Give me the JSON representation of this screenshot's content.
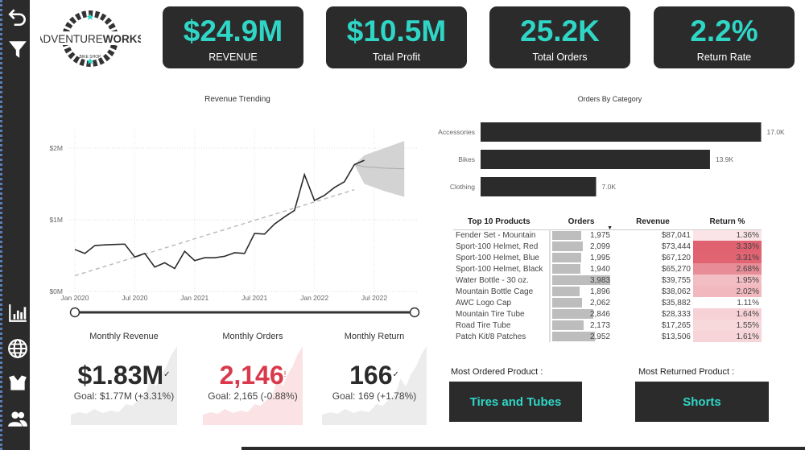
{
  "sidebar": {
    "icons": [
      "back-arrow-icon",
      "filter-icon",
      "bar-chart-icon",
      "globe-icon",
      "box-icon",
      "users-icon"
    ]
  },
  "logo": {
    "text": "ADVENTUREWORKS",
    "subtext": "BIKE SHOP"
  },
  "kpis": [
    {
      "value": "$24.9M",
      "label": "REVENUE"
    },
    {
      "value": "$10.5M",
      "label": "Total Profit"
    },
    {
      "value": "25.2K",
      "label": "Total Orders"
    },
    {
      "value": "2.2%",
      "label": "Return Rate"
    }
  ],
  "colors": {
    "dark": "#2b2b2b",
    "accent": "#2fd6c6",
    "negative": "#d9394b",
    "return_high": "#e06070"
  },
  "chart_data": [
    {
      "type": "line",
      "title": "Revenue Trending",
      "x_ticks": [
        "Jan 2020",
        "Jul 2020",
        "Jan 2021",
        "Jul 2021",
        "Jan 2022",
        "Jul 2022"
      ],
      "y_ticks": [
        "$0M",
        "$1M",
        "$2M"
      ],
      "ylim": [
        0,
        2.2
      ],
      "grid": true,
      "x": [
        "2020-01",
        "2020-02",
        "2020-03",
        "2020-04",
        "2020-05",
        "2020-06",
        "2020-07",
        "2020-08",
        "2020-09",
        "2020-10",
        "2020-11",
        "2020-12",
        "2021-01",
        "2021-02",
        "2021-03",
        "2021-04",
        "2021-05",
        "2021-06",
        "2021-07",
        "2021-08",
        "2021-09",
        "2021-10",
        "2021-11",
        "2021-12",
        "2022-01",
        "2022-02",
        "2022-03",
        "2022-04",
        "2022-05",
        "2022-06"
      ],
      "values": [
        0.585,
        0.53,
        0.64,
        0.65,
        0.655,
        0.66,
        0.48,
        0.53,
        0.34,
        0.4,
        0.32,
        0.56,
        0.43,
        0.47,
        0.47,
        0.49,
        0.54,
        0.53,
        0.81,
        0.8,
        0.94,
        1.04,
        1.13,
        1.63,
        1.27,
        1.34,
        1.45,
        1.53,
        1.77,
        1.83
      ],
      "trend": {
        "start": [
          "2020-01",
          0.22
        ],
        "end": [
          "2022-05",
          1.42
        ]
      },
      "forecast": {
        "x": [
          "2022-05",
          "2022-06",
          "2022-08",
          "2022-10"
        ],
        "mid": [
          1.77,
          1.74,
          1.72,
          1.71
        ],
        "upper": [
          1.77,
          1.9,
          2.0,
          2.1
        ],
        "lower": [
          1.77,
          1.5,
          1.4,
          1.32
        ]
      }
    },
    {
      "type": "bar",
      "title": "Orders By Category",
      "categories": [
        "Accessories",
        "Bikes",
        "Clothing"
      ],
      "values": [
        17.0,
        13.9,
        7.0
      ],
      "labels": [
        "17.0K",
        "13.9K",
        "7.0K"
      ]
    }
  ],
  "top_products": {
    "headers": [
      "Top 10 Products",
      "Orders",
      "Revenue",
      "Return %"
    ],
    "rows": [
      {
        "name": "Fender Set - Mountain",
        "orders": "1,975",
        "orders_n": 1975,
        "revenue": "$87,041",
        "ret": "1.36%",
        "ret_n": 1.36
      },
      {
        "name": "Sport-100 Helmet, Red",
        "orders": "2,099",
        "orders_n": 2099,
        "revenue": "$73,444",
        "ret": "3.33%",
        "ret_n": 3.33
      },
      {
        "name": "Sport-100 Helmet, Blue",
        "orders": "1,995",
        "orders_n": 1995,
        "revenue": "$67,120",
        "ret": "3.31%",
        "ret_n": 3.31
      },
      {
        "name": "Sport-100 Helmet, Black",
        "orders": "1,940",
        "orders_n": 1940,
        "revenue": "$65,270",
        "ret": "2.68%",
        "ret_n": 2.68
      },
      {
        "name": "Water Bottle - 30 oz.",
        "orders": "3,983",
        "orders_n": 3983,
        "revenue": "$39,755",
        "ret": "1.95%",
        "ret_n": 1.95
      },
      {
        "name": "Mountain Bottle Cage",
        "orders": "1,896",
        "orders_n": 1896,
        "revenue": "$38,062",
        "ret": "2.02%",
        "ret_n": 2.02
      },
      {
        "name": "AWC Logo Cap",
        "orders": "2,062",
        "orders_n": 2062,
        "revenue": "$35,882",
        "ret": "1.11%",
        "ret_n": 1.11
      },
      {
        "name": "Mountain Tire Tube",
        "orders": "2,846",
        "orders_n": 2846,
        "revenue": "$28,333",
        "ret": "1.64%",
        "ret_n": 1.64
      },
      {
        "name": "Road Tire Tube",
        "orders": "2,173",
        "orders_n": 2173,
        "revenue": "$17,265",
        "ret": "1.55%",
        "ret_n": 1.55
      },
      {
        "name": "Patch Kit/8 Patches",
        "orders": "2,952",
        "orders_n": 2952,
        "revenue": "$13,506",
        "ret": "1.61%",
        "ret_n": 1.61
      }
    ]
  },
  "monthly": [
    {
      "title": "Monthly Revenue",
      "value": "$1.83M",
      "indicator": "✓",
      "goal": "Goal: $1.77M (+3.31%)",
      "status": "good"
    },
    {
      "title": "Monthly Orders",
      "value": "2,146",
      "indicator": "!",
      "goal": "Goal: 2,165 (-0.88%)",
      "status": "bad"
    },
    {
      "title": "Monthly Return",
      "value": "166",
      "indicator": "✓",
      "goal": "Goal: 169 (+1.78%)",
      "status": "good"
    }
  ],
  "most_ordered": {
    "label": "Most Ordered Product :",
    "value": "Tires and Tubes"
  },
  "most_returned": {
    "label": "Most Returned Product :",
    "value": "Shorts"
  }
}
